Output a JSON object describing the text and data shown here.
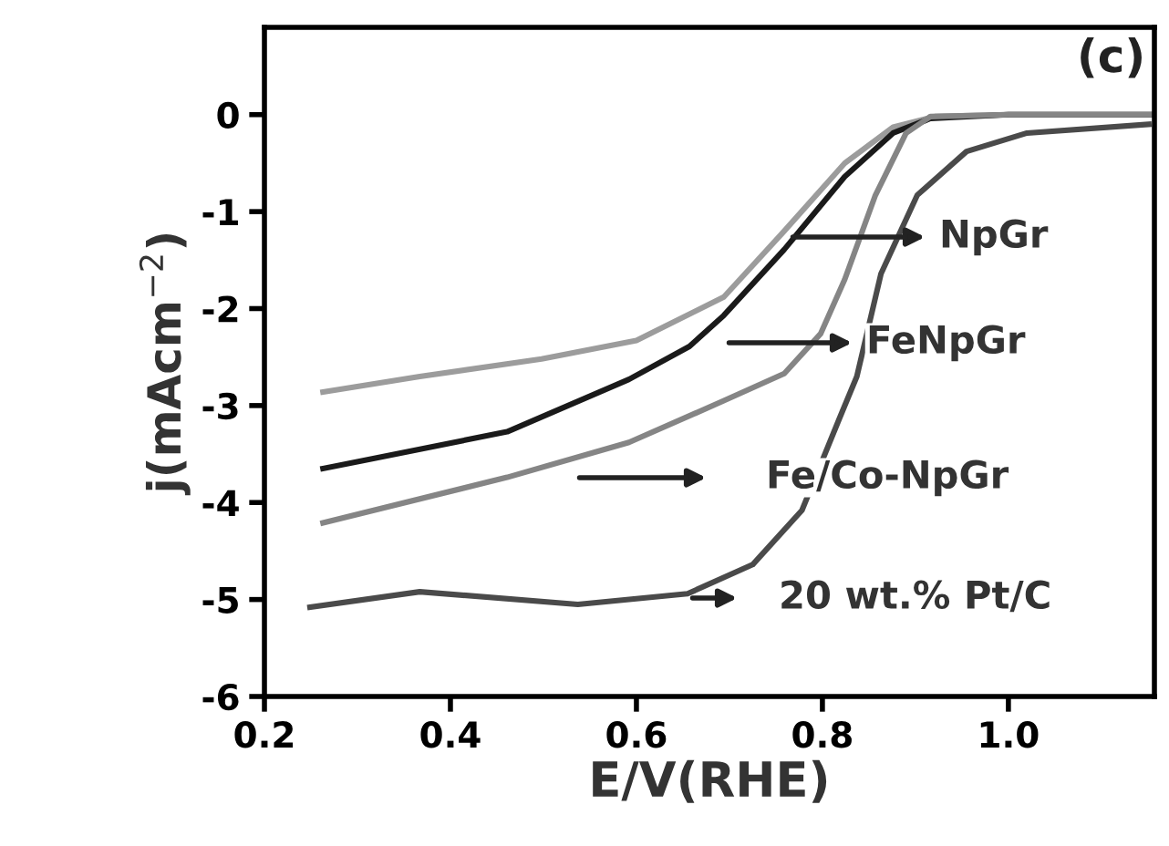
{
  "chart_data": {
    "type": "line",
    "xlabel": "E/V(RHE)",
    "ylabel": "j(mAcm$^{−2}$)",
    "xlim": [
      0.2,
      1.157
    ],
    "ylim": [
      -6,
      0.9
    ],
    "xticks": [
      {
        "value": 0.2,
        "label": "0.2"
      },
      {
        "value": 0.4,
        "label": "0.4"
      },
      {
        "value": 0.6,
        "label": "0.6"
      },
      {
        "value": 0.8,
        "label": "0.8"
      },
      {
        "value": 1.0,
        "label": "1.0"
      }
    ],
    "yticks": [
      {
        "value": 0,
        "label": "0"
      },
      {
        "value": -1,
        "label": "-1"
      },
      {
        "value": -2,
        "label": "-2"
      },
      {
        "value": -3,
        "label": "-3"
      },
      {
        "value": -4,
        "label": "-4"
      },
      {
        "value": -5,
        "label": "-5"
      },
      {
        "value": -6,
        "label": "-6"
      }
    ],
    "grid": false,
    "marker": "none",
    "line_style": "solid",
    "series": [
      {
        "color": "#9c9c9c",
        "x": [
          0.263,
          0.367,
          0.498,
          0.6,
          0.694,
          0.759,
          0.824,
          0.876,
          0.921,
          1.0,
          1.157
        ],
        "values": [
          -2.86,
          -2.7,
          -2.52,
          -2.33,
          -1.88,
          -1.2,
          -0.5,
          -0.13,
          -0.02,
          0.0,
          0.0
        ]
      },
      {
        "color": "#1a1a1a",
        "x": [
          0.263,
          0.461,
          0.592,
          0.657,
          0.694,
          0.759,
          0.824,
          0.876,
          0.916,
          1.0,
          1.157
        ],
        "values": [
          -3.65,
          -3.27,
          -2.73,
          -2.39,
          -2.07,
          -1.39,
          -0.64,
          -0.19,
          -0.04,
          0.0,
          0.0
        ]
      },
      {
        "color": "#858585",
        "x": [
          0.263,
          0.461,
          0.592,
          0.694,
          0.759,
          0.798,
          0.824,
          0.857,
          0.89,
          0.916,
          1.0,
          1.157
        ],
        "values": [
          -4.21,
          -3.74,
          -3.38,
          -2.95,
          -2.67,
          -2.26,
          -1.7,
          -0.83,
          -0.19,
          -0.02,
          0.0,
          0.0
        ]
      },
      {
        "color": "#4a4a4a",
        "x": [
          0.249,
          0.367,
          0.537,
          0.655,
          0.725,
          0.778,
          0.818,
          0.837,
          0.863,
          0.902,
          0.955,
          1.02,
          1.151
        ],
        "values": [
          -5.08,
          -4.92,
          -5.05,
          -4.94,
          -4.64,
          -4.08,
          -3.14,
          -2.7,
          -1.64,
          -0.83,
          -0.38,
          -0.19,
          -0.1
        ]
      }
    ],
    "annotations": [
      "(c)",
      "NpGr",
      "FeNpGr",
      "Fe/Co-NpGr",
      "20 wt.% Pt/C"
    ]
  }
}
